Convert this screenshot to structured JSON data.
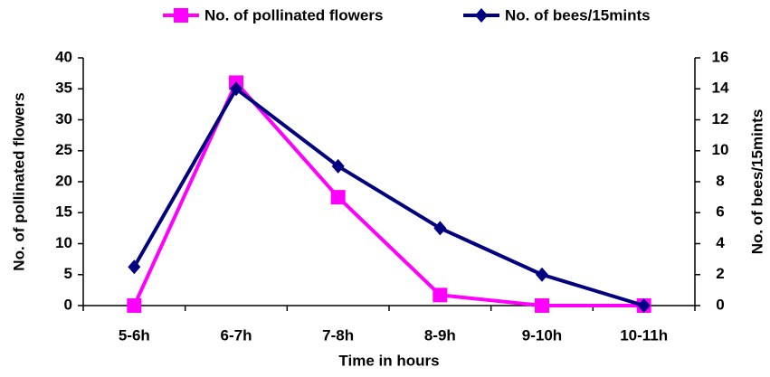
{
  "chart_data": {
    "type": "line",
    "x_label": "Time in hours",
    "y_label": "No. of pollinated flowers",
    "y2_label": "No. of bees/15mints",
    "categories": [
      "5-6h",
      "6-7h",
      "7-8h",
      "8-9h",
      "9-10h",
      "10-11h"
    ],
    "series": [
      {
        "name": "No. of pollinated flowers",
        "color": "#ff00ff",
        "marker": "square",
        "values": [
          0,
          36,
          17.5,
          1.7,
          0,
          0
        ]
      },
      {
        "name": "No. of bees/15mints",
        "color": "#000080",
        "marker": "diamond",
        "axis": "y2",
        "values": [
          2.5,
          14,
          9,
          5,
          2,
          0
        ]
      }
    ],
    "ylim": [
      0,
      40
    ],
    "yticks": [
      0,
      5,
      10,
      15,
      20,
      25,
      30,
      35,
      40
    ],
    "y2lim": [
      0,
      16
    ],
    "y2ticks": [
      0,
      2,
      4,
      6,
      8,
      10,
      12,
      14,
      16
    ],
    "grid": false
  }
}
